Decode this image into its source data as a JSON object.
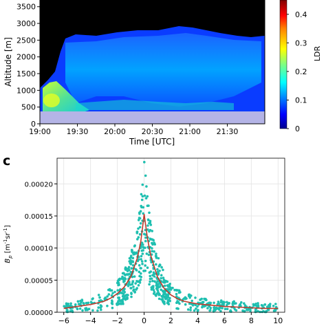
{
  "panel_c_letter": "c",
  "chart_data": [
    {
      "type": "heatmap",
      "xlabel": "Time [UTC]",
      "ylabel": "Altitude [m]",
      "x_tick_labels": [
        "19:00",
        "19:30",
        "20:00",
        "20:30",
        "21:00",
        "21:30"
      ],
      "y_tick_labels": [
        "0",
        "500",
        "1000",
        "1500",
        "2000",
        "2500",
        "3000",
        "3500"
      ],
      "xlim": [
        "19:00",
        "22:00"
      ],
      "ylim": [
        0,
        3700
      ],
      "colorbar": {
        "label": "LDR",
        "range": [
          0,
          0.45
        ],
        "tick_labels": [
          "0",
          "0.1",
          "0.2",
          "0.3",
          "0.4"
        ],
        "colormap": [
          "#00008f",
          "#0000ff",
          "#0080ff",
          "#00ffff",
          "#80ff80",
          "#ffff00",
          "#ff8000",
          "#ff0000",
          "#800000"
        ]
      },
      "colors": {
        "no_signal": "#000000",
        "surface_mask": "#b4b4e6"
      },
      "cloud_top_altitude_m": [
        [
          19.0,
          950
        ],
        [
          19.25,
          1250
        ],
        [
          19.5,
          2550
        ],
        [
          20.0,
          2650
        ],
        [
          20.5,
          2750
        ],
        [
          20.9,
          2850
        ],
        [
          21.2,
          2800
        ],
        [
          21.5,
          2600
        ],
        [
          21.75,
          2550
        ],
        [
          22.0,
          2550
        ]
      ],
      "layers": [
        {
          "name": "low_layer",
          "time_start": "19:00",
          "time_end": "19:25",
          "altitude_m": [
            350,
            1150
          ],
          "ldr": 0.28
        },
        {
          "name": "mid_layer",
          "time_start": "19:40",
          "time_end": "21:45",
          "altitude_m": [
            800,
            2500
          ],
          "ldr": 0.12
        },
        {
          "name": "base_layer",
          "time_start": "19:00",
          "time_end": "21:30",
          "altitude_m": [
            400,
            650
          ],
          "ldr": 0.18
        }
      ],
      "surface_mask_top_m": 350
    },
    {
      "type": "scatter",
      "ylabel": "B_p [m^-1 sr^-1]",
      "ylabel_main": "B",
      "ylabel_sub": "p",
      "ylabel_rest": " [m",
      "ylabel_exp1": "-1",
      "ylabel_mid": "sr",
      "ylabel_exp2": "-1",
      "ylabel_end": "]",
      "xlim": [
        -6.5,
        10.5
      ],
      "ylim": [
        0,
        0.00024
      ],
      "x_tick_labels": [
        "-6",
        "-4",
        "-2",
        "0",
        "2",
        "4",
        "6",
        "8",
        "10"
      ],
      "y_tick_labels": [
        "0.00000",
        "0.00005",
        "0.00010",
        "0.00015",
        "0.00020"
      ],
      "grid": true,
      "colors": {
        "points": "#1fbfb0",
        "fit_line": "#c0392b"
      },
      "fit_curve": {
        "x": [
          -6,
          -5,
          -4,
          -3,
          -2.5,
          -2,
          -1.5,
          -1,
          -0.5,
          -0.25,
          0,
          0.25,
          0.5,
          1,
          1.5,
          2,
          2.5,
          3,
          4,
          5,
          6,
          7,
          8,
          9,
          10
        ],
        "y": [
          6e-06,
          9e-06,
          1.2e-05,
          1.7e-05,
          2.2e-05,
          2.9e-05,
          3.9e-05,
          5.5e-05,
          8.5e-05,
          0.00011,
          0.000153,
          0.000115,
          8.8e-05,
          5.5e-05,
          3.7e-05,
          2.7e-05,
          2.1e-05,
          1.7e-05,
          1.3e-05,
          1.1e-05,
          9e-06,
          8e-06,
          7e-06,
          6e-06,
          6e-06
        ]
      }
    }
  ]
}
